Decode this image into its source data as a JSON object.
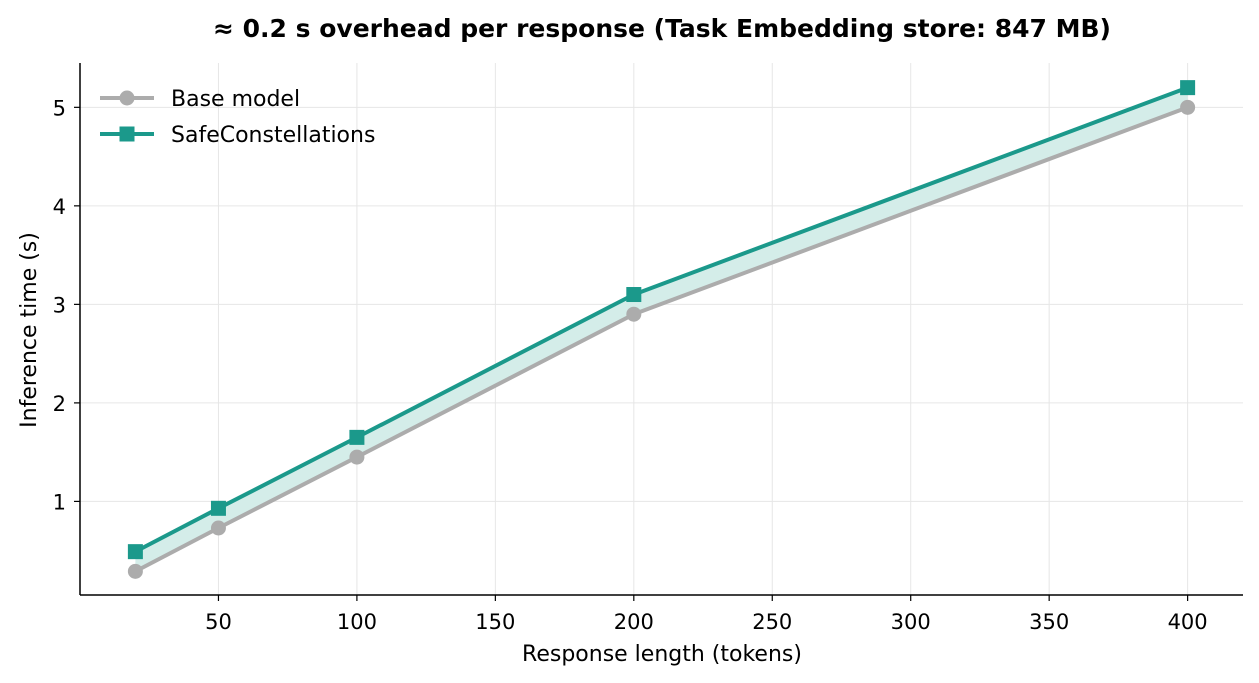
{
  "chart_data": {
    "type": "line",
    "title": "≈ 0.2 s overhead per response (Task Embedding store: 847 MB)",
    "xlabel": "Response length (tokens)",
    "ylabel": "Inference time (s)",
    "x": [
      20,
      50,
      100,
      200,
      400
    ],
    "xlim": [
      0,
      420
    ],
    "ylim": [
      0.05,
      5.45
    ],
    "xticks": [
      50,
      100,
      150,
      200,
      250,
      300,
      350,
      400
    ],
    "yticks": [
      1,
      2,
      3,
      4,
      5
    ],
    "grid": true,
    "legend_position": "top-left",
    "fill_between_series": true,
    "series": [
      {
        "name": "Base model",
        "values": [
          0.29,
          0.73,
          1.45,
          2.9,
          5.0
        ],
        "color": "#acacac",
        "marker": "circle"
      },
      {
        "name": "SafeConstellations",
        "values": [
          0.49,
          0.93,
          1.65,
          3.1,
          5.2
        ],
        "color": "#1b998b",
        "marker": "square"
      }
    ],
    "fill_color": "#d4ede9"
  }
}
